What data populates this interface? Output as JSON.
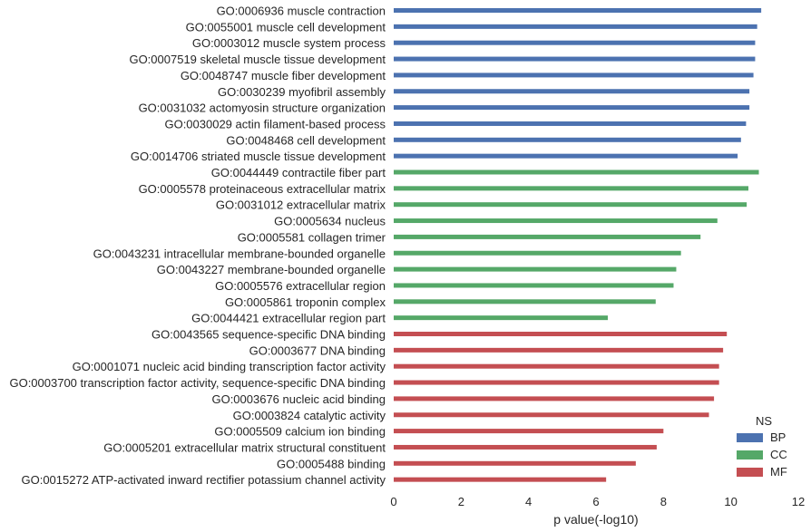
{
  "chart_data": {
    "type": "bar",
    "orientation": "horizontal",
    "xlabel": "p value(-log10)",
    "xlim": [
      0,
      12
    ],
    "xticks": [
      0,
      2,
      4,
      6,
      8,
      10,
      12
    ],
    "grid": false,
    "legend": {
      "title": "NS",
      "placement": "bottom-right",
      "entries": [
        {
          "name": "BP",
          "color": "#4c72b0"
        },
        {
          "name": "CC",
          "color": "#55a868"
        },
        {
          "name": "MF",
          "color": "#c44e52"
        }
      ]
    },
    "bars": [
      {
        "label": "GO:0006936 muscle contraction",
        "value": 10.9,
        "group": "BP"
      },
      {
        "label": "GO:0055001 muscle cell development",
        "value": 10.78,
        "group": "BP"
      },
      {
        "label": "GO:0003012 muscle system process",
        "value": 10.72,
        "group": "BP"
      },
      {
        "label": "GO:0007519 skeletal muscle tissue development",
        "value": 10.72,
        "group": "BP"
      },
      {
        "label": "GO:0048747 muscle fiber development",
        "value": 10.67,
        "group": "BP"
      },
      {
        "label": "GO:0030239 myofibril assembly",
        "value": 10.55,
        "group": "BP"
      },
      {
        "label": "GO:0031032 actomyosin structure organization",
        "value": 10.55,
        "group": "BP"
      },
      {
        "label": "GO:0030029 actin filament-based process",
        "value": 10.45,
        "group": "BP"
      },
      {
        "label": "GO:0048468 cell development",
        "value": 10.3,
        "group": "BP"
      },
      {
        "label": "GO:0014706 striated muscle tissue development",
        "value": 10.2,
        "group": "BP"
      },
      {
        "label": "GO:0044449 contractile fiber part",
        "value": 10.83,
        "group": "CC"
      },
      {
        "label": "GO:0005578 proteinaceous extracellular matrix",
        "value": 10.52,
        "group": "CC"
      },
      {
        "label": "GO:0031012 extracellular matrix",
        "value": 10.47,
        "group": "CC"
      },
      {
        "label": "GO:0005634 nucleus",
        "value": 9.6,
        "group": "CC"
      },
      {
        "label": "GO:0005581 collagen trimer",
        "value": 9.1,
        "group": "CC"
      },
      {
        "label": "GO:0043231 intracellular membrane-bounded organelle",
        "value": 8.52,
        "group": "CC"
      },
      {
        "label": "GO:0043227 membrane-bounded organelle",
        "value": 8.38,
        "group": "CC"
      },
      {
        "label": "GO:0005576 extracellular region",
        "value": 8.3,
        "group": "CC"
      },
      {
        "label": "GO:0005861 troponin complex",
        "value": 7.77,
        "group": "CC"
      },
      {
        "label": "GO:0044421 extracellular region part",
        "value": 6.35,
        "group": "CC"
      },
      {
        "label": "GO:0043565 sequence-specific DNA binding",
        "value": 9.88,
        "group": "MF"
      },
      {
        "label": "GO:0003677 DNA binding",
        "value": 9.77,
        "group": "MF"
      },
      {
        "label": "GO:0001071 nucleic acid binding transcription factor activity",
        "value": 9.65,
        "group": "MF"
      },
      {
        "label": "GO:0003700 transcription factor activity, sequence-specific DNA binding",
        "value": 9.65,
        "group": "MF"
      },
      {
        "label": "GO:0003676 nucleic acid binding",
        "value": 9.5,
        "group": "MF"
      },
      {
        "label": "GO:0003824 catalytic activity",
        "value": 9.35,
        "group": "MF"
      },
      {
        "label": "GO:0005509 calcium ion binding",
        "value": 8.0,
        "group": "MF"
      },
      {
        "label": "GO:0005201 extracellular matrix structural constituent",
        "value": 7.8,
        "group": "MF"
      },
      {
        "label": "GO:0005488 binding",
        "value": 7.18,
        "group": "MF"
      },
      {
        "label": "GO:0015272 ATP-activated inward rectifier potassium channel activity",
        "value": 6.3,
        "group": "MF"
      }
    ]
  }
}
